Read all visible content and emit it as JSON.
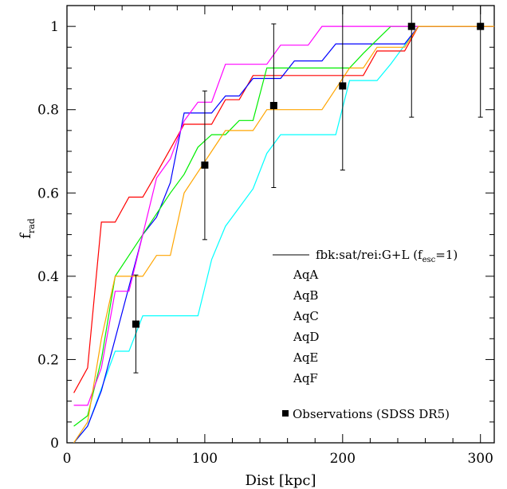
{
  "chart_data": {
    "type": "line",
    "title": "",
    "xlabel": "Dist [kpc]",
    "ylabel_main": "f",
    "ylabel_sub": "rad",
    "xlim": [
      0,
      310
    ],
    "ylim": [
      0,
      1.05
    ],
    "xticks": [
      0,
      100,
      200,
      300
    ],
    "yticks": [
      0,
      0.2,
      0.4,
      0.6,
      0.8,
      1
    ],
    "ytick_labels": [
      "0",
      "0.2",
      "0.4",
      "0.6",
      "0.8",
      "1"
    ],
    "grid": false,
    "legend_placement": "right",
    "legend_model_main": "fbk:sat/rei:G+L (f",
    "legend_model_sub": "esc",
    "legend_model_end": "=1)",
    "legend_obs": "Observations (SDSS DR5)",
    "series": [
      {
        "name": "AqA",
        "color": "#00ffff",
        "x": [
          5,
          15,
          25,
          35,
          45,
          55,
          65,
          75,
          85,
          95,
          105,
          115,
          125,
          135,
          145,
          155,
          165,
          175,
          185,
          195,
          205,
          215,
          225,
          235,
          245,
          255,
          265,
          275,
          285,
          295,
          310
        ],
        "y": [
          0.0,
          0.04,
          0.13,
          0.22,
          0.22,
          0.305,
          0.305,
          0.305,
          0.305,
          0.305,
          0.44,
          0.52,
          0.565,
          0.61,
          0.695,
          0.74,
          0.74,
          0.74,
          0.74,
          0.74,
          0.87,
          0.87,
          0.87,
          0.91,
          0.955,
          1.0,
          1.0,
          1.0,
          1.0,
          1.0,
          1.0
        ]
      },
      {
        "name": "AqB",
        "color": "#ff0000",
        "x": [
          5,
          15,
          25,
          35,
          45,
          55,
          65,
          75,
          85,
          95,
          105,
          115,
          125,
          135,
          145,
          155,
          165,
          175,
          185,
          195,
          205,
          215,
          225,
          235,
          245,
          255,
          265,
          275,
          285,
          295,
          310
        ],
        "y": [
          0.12,
          0.18,
          0.53,
          0.53,
          0.59,
          0.59,
          0.647,
          0.706,
          0.765,
          0.765,
          0.765,
          0.824,
          0.824,
          0.882,
          0.882,
          0.882,
          0.882,
          0.882,
          0.882,
          0.882,
          0.882,
          0.882,
          0.941,
          0.941,
          0.941,
          1.0,
          1.0,
          1.0,
          1.0,
          1.0,
          1.0
        ]
      },
      {
        "name": "AqC",
        "color": "#0000ff",
        "x": [
          5,
          15,
          25,
          35,
          45,
          55,
          65,
          75,
          85,
          95,
          105,
          115,
          125,
          135,
          145,
          155,
          165,
          175,
          185,
          195,
          205,
          215,
          225,
          235,
          245,
          255,
          265,
          275,
          285,
          295,
          310
        ],
        "y": [
          0.0,
          0.04,
          0.125,
          0.25,
          0.375,
          0.5,
          0.542,
          0.625,
          0.792,
          0.792,
          0.792,
          0.833,
          0.833,
          0.875,
          0.875,
          0.875,
          0.917,
          0.917,
          0.917,
          0.958,
          0.958,
          0.958,
          0.958,
          0.958,
          0.958,
          1.0,
          1.0,
          1.0,
          1.0,
          1.0,
          1.0
        ]
      },
      {
        "name": "AqD",
        "color": "#00ee00",
        "x": [
          5,
          15,
          25,
          35,
          45,
          55,
          65,
          75,
          85,
          95,
          105,
          115,
          125,
          135,
          145,
          155,
          165,
          175,
          185,
          195,
          205,
          215,
          225,
          235,
          245,
          255,
          265,
          275,
          285,
          295,
          310
        ],
        "y": [
          0.04,
          0.065,
          0.2,
          0.4,
          0.45,
          0.5,
          0.55,
          0.6,
          0.645,
          0.71,
          0.74,
          0.74,
          0.774,
          0.774,
          0.9,
          0.9,
          0.9,
          0.9,
          0.9,
          0.9,
          0.9,
          0.935,
          0.968,
          1.0,
          1.0,
          1.0,
          1.0,
          1.0,
          1.0,
          1.0,
          1.0
        ]
      },
      {
        "name": "AqE",
        "color": "#ff00ff",
        "x": [
          5,
          15,
          25,
          35,
          45,
          55,
          65,
          75,
          85,
          95,
          105,
          115,
          125,
          135,
          145,
          155,
          165,
          175,
          185,
          195,
          205,
          215,
          225,
          235,
          245,
          255,
          265,
          275,
          285,
          295,
          310
        ],
        "y": [
          0.09,
          0.09,
          0.18,
          0.364,
          0.364,
          0.5,
          0.636,
          0.682,
          0.773,
          0.818,
          0.818,
          0.909,
          0.909,
          0.909,
          0.909,
          0.955,
          0.955,
          0.955,
          1.0,
          1.0,
          1.0,
          1.0,
          1.0,
          1.0,
          1.0,
          1.0,
          1.0,
          1.0,
          1.0,
          1.0,
          1.0
        ]
      },
      {
        "name": "AqF",
        "color": "#ffa500",
        "x": [
          5,
          15,
          25,
          35,
          45,
          55,
          65,
          75,
          85,
          95,
          105,
          115,
          125,
          135,
          145,
          155,
          165,
          175,
          185,
          195,
          205,
          215,
          225,
          235,
          245,
          255,
          265,
          275,
          285,
          295,
          310
        ],
        "y": [
          0.0,
          0.05,
          0.25,
          0.4,
          0.4,
          0.4,
          0.45,
          0.45,
          0.6,
          0.65,
          0.7,
          0.75,
          0.75,
          0.75,
          0.8,
          0.8,
          0.8,
          0.8,
          0.8,
          0.85,
          0.9,
          0.9,
          0.95,
          0.95,
          0.95,
          1.0,
          1.0,
          1.0,
          1.0,
          1.0,
          1.0
        ]
      }
    ],
    "observations": [
      {
        "x": 50,
        "y": 0.285,
        "ylow": 0.168,
        "yhigh": 0.403
      },
      {
        "x": 100,
        "y": 0.667,
        "ylow": 0.488,
        "yhigh": 0.845
      },
      {
        "x": 150,
        "y": 0.81,
        "ylow": 0.613,
        "yhigh": 1.006
      },
      {
        "x": 200,
        "y": 0.857,
        "ylow": 0.655,
        "yhigh": 1.06
      },
      {
        "x": 250,
        "y": 1.0,
        "ylow": 0.782,
        "yhigh": 1.06
      },
      {
        "x": 300,
        "y": 1.0,
        "ylow": 0.782,
        "yhigh": 1.06
      }
    ]
  }
}
